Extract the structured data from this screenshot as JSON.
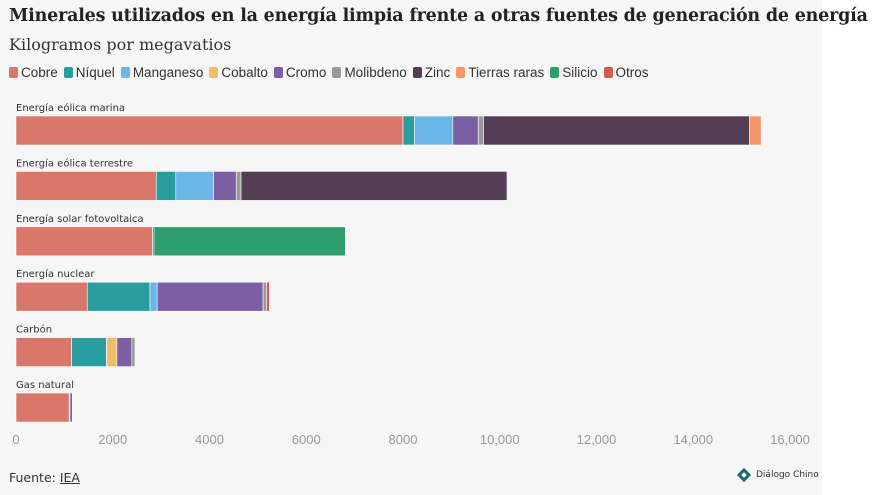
{
  "header": {
    "title": "Minerales utilizados en la energía limpia frente a otras fuentes de generación de energía",
    "subtitle": "Kilogramos por megavatios"
  },
  "footer": {
    "source_prefix": "Fuente: ",
    "source_link": "IEA",
    "brand": "Diálogo Chino"
  },
  "colors": {
    "panel_background": "#f6f6f6"
  },
  "chart_data": {
    "type": "bar",
    "orientation": "horizontal",
    "stacked": true,
    "title": "Minerales utilizados en la energía limpia frente a otras fuentes de generación de energía",
    "subtitle": "Kilogramos por megavatios",
    "xlim": [
      0,
      16000
    ],
    "x_ticks": [
      0,
      2000,
      4000,
      6000,
      8000,
      10000,
      12000,
      14000,
      16000
    ],
    "x_tick_labels": [
      "0",
      "2000",
      "4000",
      "6000",
      "8000",
      "10,000",
      "12,000",
      "14,000",
      "16,000"
    ],
    "grid": false,
    "legend_position": "top",
    "categories": [
      "Energía eólica marina",
      "Energía eólica terrestre",
      "Energía solar fotovoltaica",
      "Energía nuclear",
      "Carbón",
      "Gas natural"
    ],
    "series": [
      {
        "name": "Cobre",
        "color": "#d9786a",
        "values": [
          8000,
          2900,
          2822,
          1473,
          1150,
          1100
        ]
      },
      {
        "name": "Níquel",
        "color": "#2a9d9f",
        "values": [
          240,
          403,
          1,
          1297,
          721,
          16
        ]
      },
      {
        "name": "Manganeso",
        "color": "#6ab6e6",
        "values": [
          790,
          780,
          0,
          148,
          5,
          0
        ]
      },
      {
        "name": "Cobalto",
        "color": "#f2bd6a",
        "values": [
          0,
          0,
          0,
          0,
          210,
          0
        ]
      },
      {
        "name": "Cromo",
        "color": "#7c5ea3",
        "values": [
          525,
          470,
          0,
          2190,
          308,
          48
        ]
      },
      {
        "name": "Molibdeno",
        "color": "#9a9a9a",
        "values": [
          109,
          99,
          0,
          70,
          66,
          0
        ]
      },
      {
        "name": "Zinc",
        "color": "#553d55",
        "values": [
          5500,
          5500,
          30,
          0,
          0,
          0
        ]
      },
      {
        "name": "Tierras raras",
        "color": "#f5956a",
        "values": [
          239,
          14,
          0,
          0,
          0,
          0
        ]
      },
      {
        "name": "Silicio",
        "color": "#2f9e6e",
        "values": [
          0,
          0,
          3955,
          0,
          0,
          0
        ]
      },
      {
        "name": "Otros",
        "color": "#d65a4f",
        "values": [
          0,
          0,
          0,
          60,
          0,
          0
        ]
      }
    ]
  }
}
